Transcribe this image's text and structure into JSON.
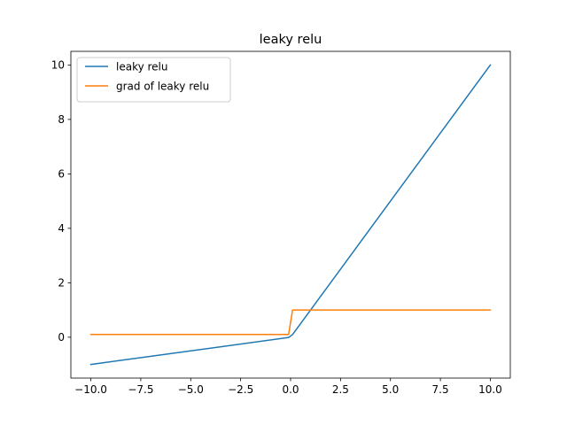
{
  "chart_data": {
    "type": "line",
    "title": "leaky relu",
    "xlabel": "",
    "ylabel": "",
    "xlim": [
      -11,
      11
    ],
    "ylim": [
      -1.5,
      10.5
    ],
    "xticks": [
      -10.0,
      -7.5,
      -5.0,
      -2.5,
      0.0,
      2.5,
      5.0,
      7.5,
      10.0
    ],
    "xtick_labels": [
      "−10.0",
      "−7.5",
      "−5.0",
      "−2.5",
      "0.0",
      "2.5",
      "5.0",
      "7.5",
      "10.0"
    ],
    "yticks": [
      0,
      2,
      4,
      6,
      8,
      10
    ],
    "ytick_labels": [
      "0",
      "2",
      "4",
      "6",
      "8",
      "10"
    ],
    "grid": false,
    "legend_position": "upper-left",
    "series": [
      {
        "name": "leaky relu",
        "color": "#1f77b4",
        "x": [
          -10,
          -0.1,
          0.1,
          10
        ],
        "y": [
          -1.0,
          -0.01,
          0.1,
          10.0
        ]
      },
      {
        "name": "grad of leaky relu",
        "color": "#ff7f0e",
        "x": [
          -10,
          -0.1,
          0.1,
          10
        ],
        "y": [
          0.1,
          0.1,
          1.0,
          1.0
        ]
      }
    ]
  }
}
